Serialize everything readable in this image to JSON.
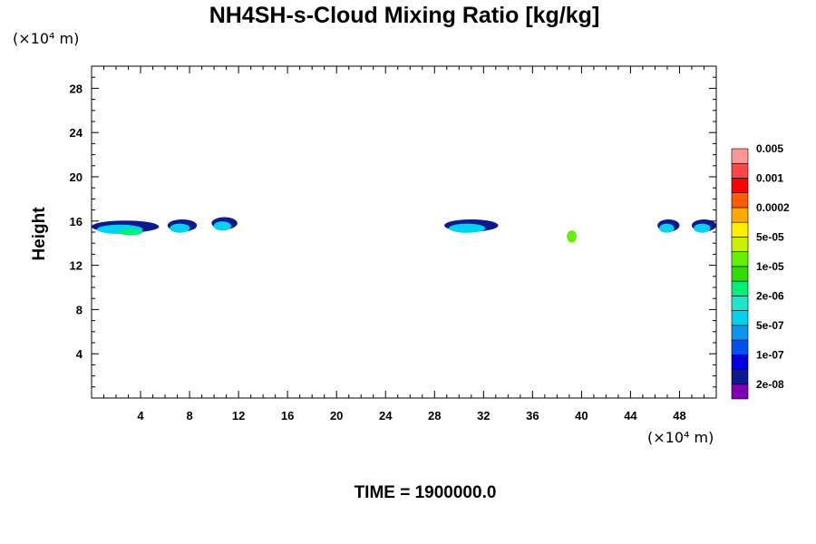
{
  "chart_data": {
    "type": "heatmap",
    "title": "NH4SH-s-Cloud Mixing Ratio [kg/kg]",
    "xlabel": "",
    "ylabel": "Height",
    "x_unit": "(×10⁴ m)",
    "y_unit": "(×10⁴ m)",
    "xlim": [
      0,
      51
    ],
    "ylim": [
      0,
      30
    ],
    "x_ticks": [
      4,
      8,
      12,
      16,
      20,
      24,
      28,
      32,
      36,
      40,
      44,
      48
    ],
    "y_ticks": [
      4,
      8,
      12,
      16,
      20,
      24,
      28
    ],
    "grid": false,
    "colorbar": {
      "placement": "right",
      "colors": [
        "#7d00b4",
        "#0c1a8c",
        "#0000dc",
        "#0050f0",
        "#0a96f0",
        "#00d2f0",
        "#1ee6c8",
        "#00f078",
        "#32dc00",
        "#64f000",
        "#c8f000",
        "#fff000",
        "#ffaa00",
        "#ff5a00",
        "#ff0000",
        "#ff4646",
        "#ff9696"
      ],
      "labels": [
        "2e-08",
        "1e-07",
        "5e-07",
        "2e-06",
        "1e-05",
        "5e-05",
        "0.0002",
        "0.001",
        "0.005"
      ]
    },
    "cloud_regions": [
      {
        "x_range": [
          0,
          5.5
        ],
        "height": 15.5,
        "color_levels": [
          "2e-08",
          "5e-07",
          "2e-06"
        ]
      },
      {
        "x_range": [
          6.2,
          8.6
        ],
        "height": 15.6,
        "color_levels": [
          "2e-08",
          "5e-07"
        ]
      },
      {
        "x_range": [
          9.8,
          11.9
        ],
        "height": 15.8,
        "color_levels": [
          "2e-08",
          "5e-07"
        ]
      },
      {
        "x_range": [
          28.8,
          33.2
        ],
        "height": 15.6,
        "color_levels": [
          "2e-08",
          "5e-07"
        ]
      },
      {
        "x_range": [
          38.8,
          39.6
        ],
        "height": 14.6,
        "color_levels": [
          "1e-05"
        ]
      },
      {
        "x_range": [
          46.2,
          48.0
        ],
        "height": 15.6,
        "color_levels": [
          "2e-08",
          "5e-07"
        ]
      },
      {
        "x_range": [
          49.0,
          51
        ],
        "height": 15.6,
        "color_levels": [
          "2e-08",
          "5e-07"
        ]
      }
    ],
    "annotation": "TIME = 1900000.0"
  }
}
